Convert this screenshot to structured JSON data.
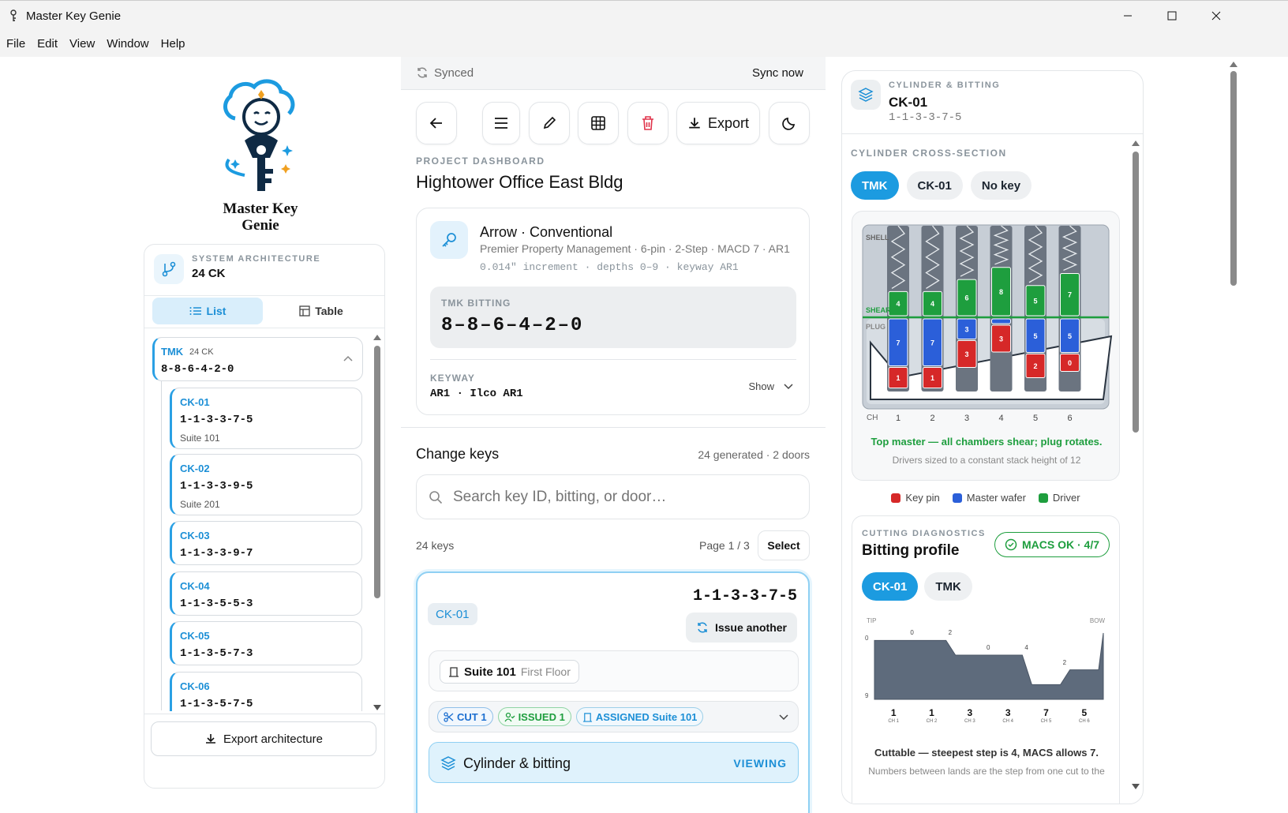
{
  "window": {
    "title": "Master Key Genie",
    "minimize_icon": "minimize-icon",
    "maximize_icon": "maximize-icon",
    "close_icon": "close-icon"
  },
  "menu": [
    "File",
    "Edit",
    "View",
    "Window",
    "Help"
  ],
  "brand": {
    "name_line1": "Master Key",
    "name_line2": "Genie",
    "logo_icon": "genie-key-logo"
  },
  "architecture": {
    "label": "SYSTEM ARCHITECTURE",
    "value": "24 CK",
    "views": [
      "List",
      "Table"
    ],
    "active_view": "List",
    "export_label": "Export architecture"
  },
  "tree": {
    "tmk": {
      "id": "TMK",
      "count": "24 CK",
      "bitting": "8-8-6-4-2-0"
    },
    "items": [
      {
        "id": "CK-01",
        "bitting": "1-1-3-3-7-5",
        "door": "Suite 101"
      },
      {
        "id": "CK-02",
        "bitting": "1-1-3-3-9-5",
        "door": "Suite 201"
      },
      {
        "id": "CK-03",
        "bitting": "1-1-3-3-9-7",
        "door": ""
      },
      {
        "id": "CK-04",
        "bitting": "1-1-3-5-5-3",
        "door": ""
      },
      {
        "id": "CK-05",
        "bitting": "1-1-3-5-7-3",
        "door": ""
      },
      {
        "id": "CK-06",
        "bitting": "1-1-3-5-7-5",
        "door": ""
      }
    ]
  },
  "sync": {
    "status": "Synced",
    "action": "Sync now"
  },
  "toolbar": {
    "export_label": "Export"
  },
  "project": {
    "overline": "PROJECT DASHBOARD",
    "title": "Hightower Office East Bldg"
  },
  "system": {
    "name": "Arrow · Conventional",
    "details": "Premier Property Management · 6-pin · 2-Step · MACD 7 · AR1",
    "spec": "0.014\" increment · depths 0–9 · keyway AR1",
    "tmk_label": "TMK BITTING",
    "tmk_bitting": "8–8–6–4–2–0",
    "keyway_label": "KEYWAY",
    "keyway_value": "AR1 · Ilco AR1",
    "keyway_action": "Show"
  },
  "change_keys": {
    "title": "Change keys",
    "summary": "24 generated · 2 doors",
    "search_placeholder": "Search key ID, bitting, or door…",
    "count": "24 keys",
    "page": "Page 1 / 3",
    "select_label": "Select"
  },
  "selected_key": {
    "id": "CK-01",
    "bitting": "1-1-3-3-7-5",
    "issue_label": "Issue another",
    "door_name": "Suite 101",
    "door_floor": "First Floor",
    "tags": [
      {
        "label": "CUT 1",
        "kind": "cut",
        "icon": "scissors-icon"
      },
      {
        "label": "ISSUED 1",
        "kind": "issued",
        "icon": "user-check-icon"
      },
      {
        "label": "ASSIGNED Suite 101",
        "kind": "assigned",
        "icon": "door-icon"
      }
    ],
    "cyl_label": "Cylinder & bitting",
    "cyl_status": "VIEWING"
  },
  "right_panel": {
    "overline": "CYLINDER & BITTING",
    "key_id": "CK-01",
    "key_bitting": "1-1-3-3-7-5",
    "cross_section_label": "CYLINDER CROSS-SECTION",
    "cross_tabs": [
      "TMK",
      "CK-01",
      "No key"
    ],
    "active_cross_tab": "TMK",
    "shell_label": "SHELL",
    "shear_label": "SHEAR",
    "plug_label": "PLUG",
    "ch_label": "CH",
    "chambers": [
      {
        "ch": "1",
        "driver": "4",
        "wafer": "7",
        "keypin": "1"
      },
      {
        "ch": "2",
        "driver": "4",
        "wafer": "7",
        "keypin": "1"
      },
      {
        "ch": "3",
        "driver": "6",
        "wafer": "3",
        "keypin": "3"
      },
      {
        "ch": "4",
        "driver": "8",
        "wafer": "",
        "keypin": "3"
      },
      {
        "ch": "5",
        "driver": "5",
        "wafer": "5",
        "keypin": "2"
      },
      {
        "ch": "6",
        "driver": "7",
        "wafer": "5",
        "keypin": "0"
      }
    ],
    "status_text": "Top master — all chambers shear; plug rotates.",
    "status_sub": "Drivers sized to a constant stack height of 12",
    "legend": [
      {
        "label": "Key pin",
        "color": "#d62828"
      },
      {
        "label": "Master wafer",
        "color": "#2b5fd9"
      },
      {
        "label": "Driver",
        "color": "#1e9e3e"
      }
    ],
    "diag_overline": "CUTTING DIAGNOSTICS",
    "diag_title": "Bitting profile",
    "macs_badge": "MACS OK · 4/7",
    "profile_tabs": [
      "CK-01",
      "TMK"
    ],
    "active_profile_tab": "CK-01",
    "tip_label": "TIP",
    "bow_label": "BOW",
    "y_top": "0",
    "y_bottom": "9",
    "steps": [
      "0",
      "2",
      "0",
      "4",
      "2"
    ],
    "cuts": [
      {
        "value": "1",
        "ch": "CH 1"
      },
      {
        "value": "1",
        "ch": "CH 2"
      },
      {
        "value": "3",
        "ch": "CH 3"
      },
      {
        "value": "3",
        "ch": "CH 4"
      },
      {
        "value": "7",
        "ch": "CH 5"
      },
      {
        "value": "5",
        "ch": "CH 6"
      }
    ],
    "cuttable_text": "Cuttable — steepest step is 4, MACS allows 7.",
    "footnote": "Numbers between lands are the step from one cut to the"
  }
}
